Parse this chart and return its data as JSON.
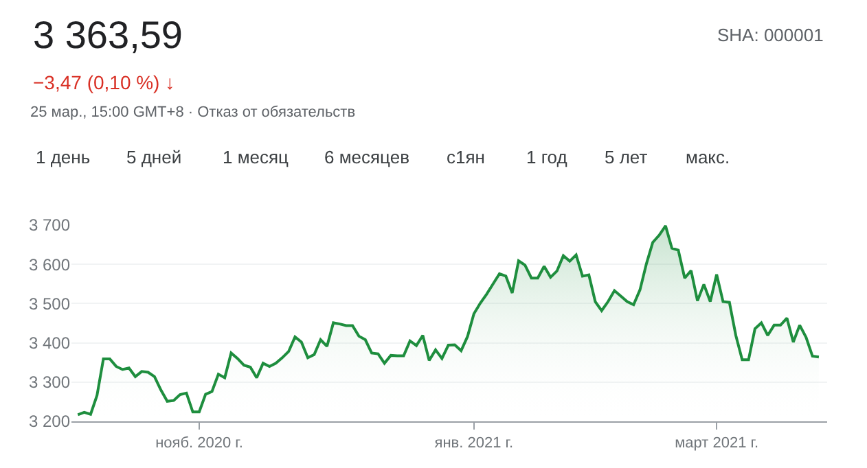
{
  "chart_data": {
    "type": "area",
    "title": "3 363,59",
    "subtitle": "−3,47 (0,10 %) ↓",
    "annotations": [
      "25 мар., 15:00 GMT+8 · Отказ от обязательств",
      "SHA: 000001",
      "1 день",
      "5 дней",
      "1 месяц",
      "6 месяцев",
      "с1ян",
      "1 год",
      "5 лет",
      "макс."
    ],
    "categories": [
      null,
      null,
      null,
      null,
      null,
      null,
      null,
      null,
      null,
      null,
      null,
      null,
      null,
      null,
      null,
      null,
      null,
      null,
      null,
      "нояб. 2020 г.",
      null,
      null,
      null,
      null,
      null,
      null,
      null,
      null,
      null,
      null,
      null,
      null,
      null,
      null,
      null,
      null,
      null,
      null,
      null,
      null,
      null,
      null,
      null,
      null,
      null,
      null,
      null,
      null,
      null,
      null,
      null,
      null,
      null,
      null,
      null,
      null,
      null,
      null,
      null,
      null,
      null,
      null,
      "янв. 2021 г.",
      null,
      null,
      null,
      null,
      null,
      null,
      null,
      null,
      null,
      null,
      null,
      null,
      null,
      null,
      null,
      null,
      null,
      null,
      null,
      null,
      null,
      null,
      null,
      null,
      null,
      null,
      null,
      null,
      null,
      null,
      null,
      null,
      null,
      null,
      null,
      null,
      null,
      "март 2021 г.",
      null,
      null,
      null,
      null,
      null,
      null,
      null,
      null,
      null,
      null,
      null,
      null,
      null,
      null,
      null,
      null
    ],
    "series": [
      {
        "color": "#1e8e3e",
        "values": [
          3217,
          3223,
          3218,
          3266,
          3359,
          3359,
          3340,
          3332,
          3336,
          3314,
          3327,
          3325,
          3314,
          3280,
          3251,
          3253,
          3268,
          3272,
          3224,
          3224,
          3269,
          3276,
          3320,
          3311,
          3374,
          3360,
          3343,
          3338,
          3311,
          3348,
          3340,
          3348,
          3362,
          3378,
          3415,
          3402,
          3362,
          3370,
          3408,
          3391,
          3451,
          3448,
          3444,
          3444,
          3417,
          3408,
          3374,
          3372,
          3348,
          3368,
          3367,
          3367,
          3405,
          3393,
          3419,
          3355,
          3382,
          3360,
          3394,
          3395,
          3380,
          3416,
          3474,
          3501,
          3524,
          3550,
          3576,
          3570,
          3527,
          3609,
          3598,
          3565,
          3565,
          3595,
          3567,
          3583,
          3622,
          3608,
          3624,
          3570,
          3573,
          3505,
          3482,
          3505,
          3533,
          3519,
          3505,
          3497,
          3535,
          3601,
          3656,
          3674,
          3698,
          3641,
          3636,
          3565,
          3584,
          3507,
          3549,
          3505,
          3574,
          3505,
          3503,
          3419,
          3357,
          3357,
          3436,
          3451,
          3419,
          3445,
          3445,
          3463,
          3402,
          3445,
          3414,
          3366,
          3364
        ]
      }
    ],
    "ylim": [
      3200,
      3700
    ],
    "yticks": [
      {
        "value": 3200,
        "label": "3 200"
      },
      {
        "value": 3300,
        "label": "3 300"
      },
      {
        "value": 3400,
        "label": "3 400"
      },
      {
        "value": 3500,
        "label": "3 500"
      },
      {
        "value": 3600,
        "label": "3 600"
      },
      {
        "value": 3700,
        "label": "3 700"
      }
    ],
    "grid": "y"
  }
}
